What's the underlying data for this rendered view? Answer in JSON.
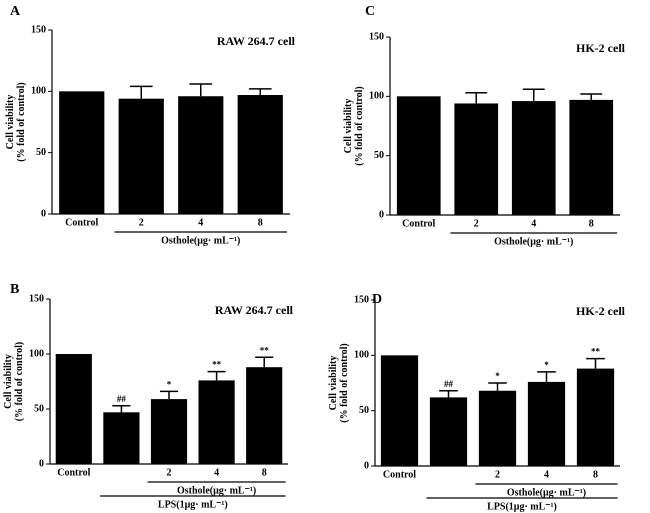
{
  "chart_data": [
    {
      "type": "bar",
      "panel": "A",
      "cell_label": "RAW 264.7 cell",
      "ylabel": [
        "Cell viability",
        "(% fold of control)"
      ],
      "categories": [
        "Control",
        "2",
        "4",
        "8"
      ],
      "values": [
        100,
        94,
        96,
        97
      ],
      "errors": [
        0,
        10,
        10,
        5
      ],
      "color": "#000000",
      "ylim": [
        0,
        150
      ],
      "yticks": [
        0,
        50,
        100,
        150
      ],
      "groups": [
        {
          "label": "Osthole(μg· mL⁻¹)",
          "start": 1,
          "end": 3
        }
      ]
    },
    {
      "type": "bar",
      "panel": "B",
      "cell_label": "RAW 264.7 cell",
      "ylabel": [
        "Cell viability",
        "(% fold of control)"
      ],
      "categories": [
        "Control",
        null,
        "2",
        "4",
        "8"
      ],
      "values": [
        100,
        47,
        59,
        76,
        88
      ],
      "errors": [
        0,
        6,
        7,
        8,
        9
      ],
      "annotations": [
        null,
        "##",
        "*",
        "**",
        "**"
      ],
      "color": "#000000",
      "ylim": [
        0,
        150
      ],
      "yticks": [
        0,
        50,
        100,
        150
      ],
      "groups": [
        {
          "label": "Osthole(μg· mL⁻¹)",
          "start": 2,
          "end": 4
        },
        {
          "label": "LPS(1μg· mL⁻¹)",
          "start": 1,
          "end": 4
        }
      ]
    },
    {
      "type": "bar",
      "panel": "C",
      "cell_label": "HK-2 cell",
      "ylabel": [
        "Cell viability",
        "(% fold of control)"
      ],
      "categories": [
        "Control",
        "2",
        "4",
        "8"
      ],
      "values": [
        100,
        94,
        96,
        97
      ],
      "errors": [
        0,
        9,
        10,
        5
      ],
      "color": "#000000",
      "ylim": [
        0,
        150
      ],
      "yticks": [
        0,
        50,
        100,
        150
      ],
      "groups": [
        {
          "label": "Osthole(μg· mL⁻¹)",
          "start": 1,
          "end": 3
        }
      ]
    },
    {
      "type": "bar",
      "panel": "D",
      "cell_label": "HK-2 cell",
      "ylabel": [
        "Cell viability",
        "(% fold of control)"
      ],
      "categories": [
        "Control",
        null,
        "2",
        "4",
        "8"
      ],
      "values": [
        100,
        62,
        68,
        76,
        88
      ],
      "errors": [
        0,
        6,
        7,
        9,
        9
      ],
      "annotations": [
        null,
        "##",
        "*",
        "*",
        "**"
      ],
      "color": "#000000",
      "ylim": [
        0,
        150
      ],
      "yticks": [
        0,
        50,
        100,
        150
      ],
      "groups": [
        {
          "label": "Osthole(μg· mL⁻¹)",
          "start": 2,
          "end": 4
        },
        {
          "label": "LPS(1μg· mL⁻¹)",
          "start": 1,
          "end": 4
        }
      ]
    }
  ]
}
